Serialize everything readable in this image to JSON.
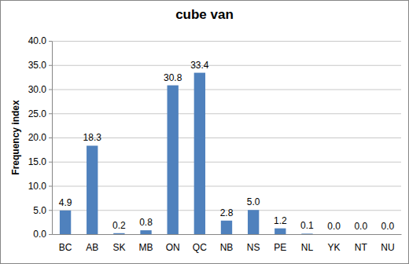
{
  "chart_data": {
    "type": "bar",
    "title": "cube van",
    "y_label": "Frequency index",
    "categories": [
      "BC",
      "AB",
      "SK",
      "MB",
      "ON",
      "QC",
      "NB",
      "NS",
      "PE",
      "NL",
      "YK",
      "NT",
      "NU"
    ],
    "values": [
      4.9,
      18.3,
      0.2,
      0.8,
      30.8,
      33.4,
      2.8,
      5.0,
      1.2,
      0.1,
      0.0,
      0.0,
      0.0
    ],
    "value_labels": [
      "4.9",
      "18.3",
      "0.2",
      "0.8",
      "30.8",
      "33.4",
      "2.8",
      "5.0",
      "1.2",
      "0.1",
      "0.0",
      "0.0",
      "0.0"
    ],
    "color": "#4f81bd",
    "ylim": [
      0,
      40
    ],
    "yticks": [
      {
        "value": 0,
        "label": "0.0"
      },
      {
        "value": 5,
        "label": "5.0"
      },
      {
        "value": 10,
        "label": "10.0"
      },
      {
        "value": 15,
        "label": "15.0"
      },
      {
        "value": 20,
        "label": "20.0"
      },
      {
        "value": 25,
        "label": "25.0"
      },
      {
        "value": 30,
        "label": "30.0"
      },
      {
        "value": 35,
        "label": "35.0"
      },
      {
        "value": 40,
        "label": "40.0"
      }
    ],
    "grid": true,
    "data_labels": true
  }
}
